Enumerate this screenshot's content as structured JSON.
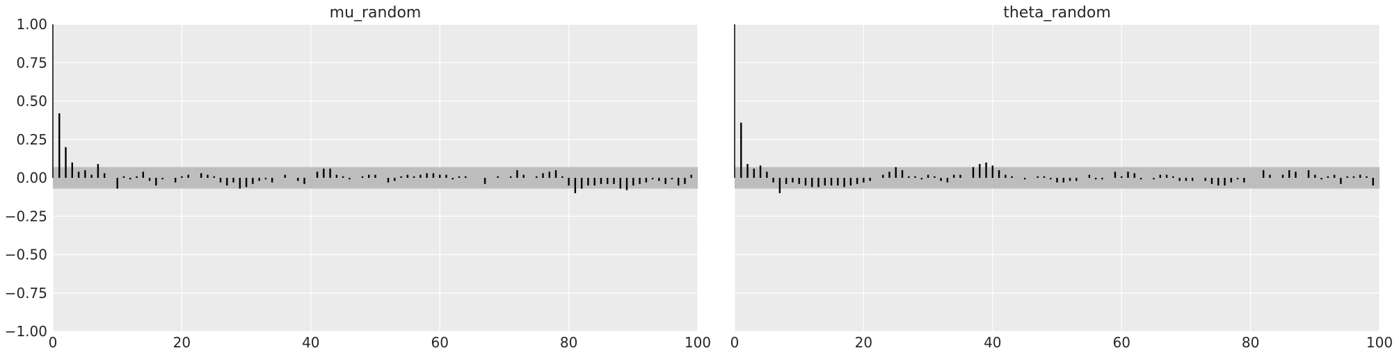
{
  "colors": {
    "axes_background": "#ebebeb",
    "grid": "#ffffff",
    "confidence_band": "#bdbdbd",
    "bars": "#000000",
    "text": "#262626"
  },
  "chart_data": [
    {
      "type": "bar",
      "title": "mu_random",
      "xlabel": "",
      "ylabel": "",
      "xlim": [
        0,
        100
      ],
      "ylim": [
        -1.0,
        1.0
      ],
      "xticks": [
        "0",
        "20",
        "40",
        "60",
        "80",
        "100"
      ],
      "yticks": [
        "−1.00",
        "−0.75",
        "−0.50",
        "−0.25",
        "0.00",
        "0.25",
        "0.50",
        "0.75",
        "1.00"
      ],
      "grid": true,
      "confidence_band": [
        -0.07,
        0.07
      ],
      "lags": [
        0,
        1,
        2,
        3,
        4,
        5,
        6,
        7,
        8,
        9,
        10,
        11,
        12,
        13,
        14,
        15,
        16,
        17,
        18,
        19,
        20,
        21,
        22,
        23,
        24,
        25,
        26,
        27,
        28,
        29,
        30,
        31,
        32,
        33,
        34,
        35,
        36,
        37,
        38,
        39,
        40,
        41,
        42,
        43,
        44,
        45,
        46,
        47,
        48,
        49,
        50,
        51,
        52,
        53,
        54,
        55,
        56,
        57,
        58,
        59,
        60,
        61,
        62,
        63,
        64,
        65,
        66,
        67,
        68,
        69,
        70,
        71,
        72,
        73,
        74,
        75,
        76,
        77,
        78,
        79,
        80,
        81,
        82,
        83,
        84,
        85,
        86,
        87,
        88,
        89,
        90,
        91,
        92,
        93,
        94,
        95,
        96,
        97,
        98,
        99
      ],
      "values": [
        1.0,
        0.42,
        0.2,
        0.1,
        0.04,
        0.05,
        0.02,
        0.09,
        0.03,
        0.0,
        -0.07,
        0.01,
        -0.01,
        0.01,
        0.04,
        -0.02,
        -0.05,
        -0.01,
        0.0,
        -0.03,
        0.01,
        0.02,
        0.0,
        0.03,
        0.02,
        0.01,
        -0.03,
        -0.05,
        -0.03,
        -0.07,
        -0.06,
        -0.04,
        -0.02,
        -0.01,
        -0.03,
        0.0,
        0.02,
        0.0,
        -0.02,
        -0.04,
        0.0,
        0.04,
        0.06,
        0.06,
        0.02,
        0.01,
        -0.01,
        0.0,
        0.01,
        0.02,
        0.02,
        0.0,
        -0.03,
        -0.02,
        0.01,
        0.02,
        0.01,
        0.02,
        0.03,
        0.03,
        0.02,
        0.02,
        -0.01,
        0.01,
        0.01,
        0.0,
        0.0,
        -0.04,
        0.0,
        0.01,
        0.0,
        0.01,
        0.05,
        0.02,
        0.0,
        0.01,
        0.03,
        0.04,
        0.05,
        0.01,
        -0.05,
        -0.1,
        -0.07,
        -0.05,
        -0.05,
        -0.04,
        -0.04,
        -0.04,
        -0.07,
        -0.08,
        -0.05,
        -0.04,
        -0.03,
        -0.01,
        -0.02,
        -0.04,
        -0.01,
        -0.05,
        -0.04,
        0.02
      ]
    },
    {
      "type": "bar",
      "title": "theta_random",
      "xlabel": "",
      "ylabel": "",
      "xlim": [
        0,
        100
      ],
      "ylim": [
        -1.0,
        1.0
      ],
      "xticks": [
        "0",
        "20",
        "40",
        "60",
        "80",
        "100"
      ],
      "yticks": [],
      "grid": true,
      "confidence_band": [
        -0.07,
        0.07
      ],
      "lags": [
        0,
        1,
        2,
        3,
        4,
        5,
        6,
        7,
        8,
        9,
        10,
        11,
        12,
        13,
        14,
        15,
        16,
        17,
        18,
        19,
        20,
        21,
        22,
        23,
        24,
        25,
        26,
        27,
        28,
        29,
        30,
        31,
        32,
        33,
        34,
        35,
        36,
        37,
        38,
        39,
        40,
        41,
        42,
        43,
        44,
        45,
        46,
        47,
        48,
        49,
        50,
        51,
        52,
        53,
        54,
        55,
        56,
        57,
        58,
        59,
        60,
        61,
        62,
        63,
        64,
        65,
        66,
        67,
        68,
        69,
        70,
        71,
        72,
        73,
        74,
        75,
        76,
        77,
        78,
        79,
        80,
        81,
        82,
        83,
        84,
        85,
        86,
        87,
        88,
        89,
        90,
        91,
        92,
        93,
        94,
        95,
        96,
        97,
        98,
        99
      ],
      "values": [
        1.0,
        0.36,
        0.09,
        0.06,
        0.08,
        0.04,
        -0.03,
        -0.1,
        -0.04,
        -0.03,
        -0.04,
        -0.05,
        -0.06,
        -0.06,
        -0.05,
        -0.05,
        -0.05,
        -0.06,
        -0.05,
        -0.04,
        -0.03,
        -0.02,
        0.0,
        0.02,
        0.04,
        0.07,
        0.05,
        0.01,
        0.01,
        -0.01,
        0.02,
        0.01,
        -0.02,
        -0.03,
        0.02,
        0.02,
        0.0,
        0.07,
        0.09,
        0.1,
        0.08,
        0.05,
        0.02,
        0.01,
        0.0,
        -0.01,
        0.0,
        0.01,
        0.01,
        -0.01,
        -0.03,
        -0.03,
        -0.02,
        -0.02,
        0.0,
        0.02,
        -0.01,
        -0.01,
        0.0,
        0.04,
        0.01,
        0.04,
        0.03,
        -0.01,
        0.0,
        -0.01,
        0.02,
        0.02,
        0.01,
        -0.02,
        -0.02,
        -0.02,
        0.0,
        -0.02,
        -0.04,
        -0.05,
        -0.05,
        -0.03,
        -0.01,
        -0.03,
        0.0,
        0.0,
        0.05,
        0.02,
        0.0,
        0.02,
        0.05,
        0.04,
        0.0,
        0.05,
        0.02,
        -0.01,
        0.01,
        0.02,
        -0.04,
        0.01,
        0.01,
        0.02,
        0.01,
        -0.05
      ]
    }
  ]
}
